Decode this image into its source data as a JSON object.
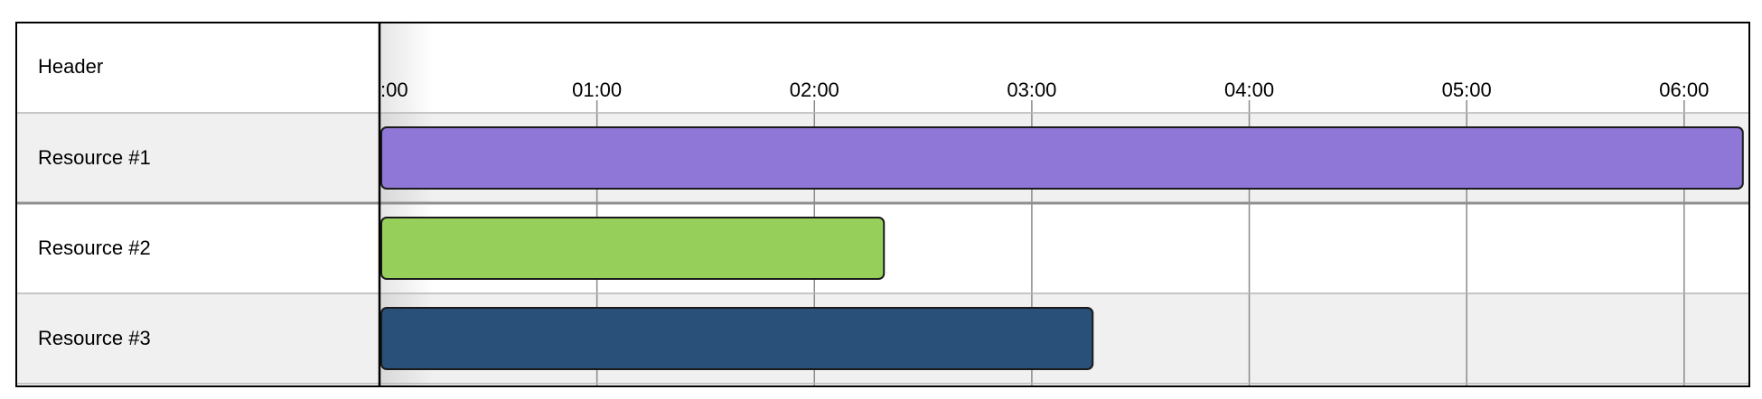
{
  "chart_data": {
    "type": "gantt",
    "header": "Header",
    "time_unit": "hours",
    "ticks": [
      {
        "t": 0,
        "label": ":00"
      },
      {
        "t": 1,
        "label": "01:00"
      },
      {
        "t": 2,
        "label": "02:00"
      },
      {
        "t": 3,
        "label": "03:00"
      },
      {
        "t": 4,
        "label": "04:00"
      },
      {
        "t": 5,
        "label": "05:00"
      },
      {
        "t": 6,
        "label": "06:00"
      }
    ],
    "xlim": [
      0,
      6.3
    ],
    "rows": [
      {
        "label": "Resource #1",
        "start": 0,
        "end": 6.27,
        "color": "#8e77d6",
        "alt": true
      },
      {
        "label": "Resource #2",
        "start": 0,
        "end": 2.32,
        "color": "#97cf5b",
        "alt": false
      },
      {
        "label": "Resource #3",
        "start": 0,
        "end": 3.28,
        "color": "#295078",
        "alt": true
      }
    ],
    "colors": {
      "grid": "#8a8a8a",
      "row_alt": "#f0f0f0",
      "border": "#000000"
    }
  }
}
